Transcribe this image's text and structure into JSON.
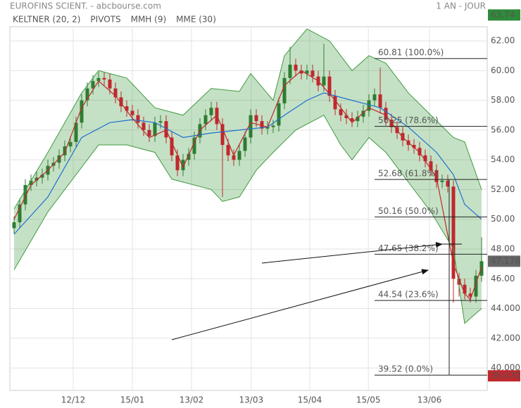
{
  "chart_data": {
    "type": "candlestick",
    "title": "EUROFINS SCIENT. - abcbourse.com",
    "period": "1 AN - JOUR",
    "legend": [
      {
        "name": "KELTNER (20, 2)",
        "color": "#3f9a3f"
      },
      {
        "name": "PIVOTS",
        "color": "#444444"
      },
      {
        "name": "MMH (9)",
        "color": "#c0282d"
      },
      {
        "name": "MME (30)",
        "color": "#1e6fd0"
      }
    ],
    "up_color": "#2e7d32",
    "down_color": "#c0282d",
    "open": [
      49.4,
      49.8,
      51,
      52.3,
      52.6,
      52.8,
      53,
      53.6,
      53.8,
      54.3,
      54.9,
      55.2,
      56.5,
      58,
      58.8,
      59.3,
      59.5,
      59.4,
      58.8,
      58.2,
      57.6,
      57.3,
      57,
      56.5,
      56,
      55.6,
      56.5,
      56.6,
      55.5,
      54.3,
      53.3,
      54,
      54.4,
      55.5,
      56.4,
      57,
      57.5,
      56.4,
      55,
      54.3,
      54,
      54.6,
      55.5,
      57,
      56.6,
      56.1,
      56.2,
      56.3,
      57.8,
      59.5,
      60.4,
      60,
      59.8,
      60,
      59.6,
      59,
      59.6,
      58.3,
      57.4,
      57,
      56.8,
      56.6,
      56.9,
      57.3,
      58,
      58.4,
      57.5,
      56.7,
      56.2,
      55.8,
      55.3,
      55,
      54.8,
      54.3,
      53.9,
      53.3,
      52.5,
      52.6,
      52.2,
      46,
      45.6,
      45,
      44.8,
      46.2
    ],
    "high": [
      50.2,
      51.4,
      52.7,
      53,
      53.2,
      53.4,
      54,
      54.2,
      54.7,
      55.3,
      55.6,
      56.9,
      58.4,
      59.2,
      59.7,
      59.9,
      59.9,
      59.8,
      59.2,
      58.6,
      58,
      57.7,
      57.4,
      56.9,
      56.4,
      56.9,
      57,
      57,
      55.9,
      54.7,
      54.4,
      54.8,
      55.9,
      56.8,
      57.4,
      57.9,
      57.9,
      56.8,
      55.4,
      54.7,
      55,
      55.9,
      57.4,
      57.4,
      57,
      56.6,
      56.7,
      58.2,
      59.9,
      61.6,
      60.8,
      60.4,
      60.4,
      60.4,
      60,
      61.8,
      60,
      58.7,
      57.8,
      57.4,
      57.2,
      57.3,
      57.7,
      58.4,
      58.8,
      60.2,
      57.9,
      57.1,
      56.6,
      56.2,
      55.7,
      55.4,
      55.2,
      54.7,
      54.3,
      53.7,
      53,
      53,
      52.6,
      46.4,
      46,
      45.4,
      46.6,
      48.8
    ],
    "low": [
      49,
      49.4,
      50.6,
      51.9,
      52.2,
      52.4,
      52.6,
      53.2,
      53.4,
      53.9,
      54.5,
      54.8,
      56.1,
      57.6,
      58.4,
      58.9,
      59,
      58.4,
      57.8,
      57.2,
      56.9,
      56.6,
      56.1,
      55.6,
      55.2,
      55.2,
      56.1,
      55.1,
      53.9,
      52.9,
      52.9,
      53.6,
      54,
      55.1,
      56,
      56.6,
      56,
      51.5,
      53.9,
      53.6,
      53.6,
      54.2,
      55.1,
      56.2,
      55.7,
      55.7,
      55.8,
      55.9,
      57.4,
      59.1,
      59.6,
      59.4,
      59.4,
      59.2,
      58.6,
      58.6,
      57.9,
      57,
      56.6,
      56.4,
      56.2,
      56.2,
      56.5,
      56.9,
      57.6,
      57.1,
      56.3,
      55.8,
      55.4,
      54.9,
      54.6,
      54.4,
      53.9,
      53.5,
      52.9,
      52.1,
      52.1,
      51.8,
      44.4,
      44.8,
      44.6,
      44.4,
      44.4,
      45.8
    ],
    "close": [
      49.8,
      51,
      52.3,
      52.6,
      52.8,
      53,
      53.6,
      53.8,
      54.3,
      54.9,
      55.2,
      56.5,
      58,
      58.8,
      59.3,
      59.5,
      59.4,
      58.8,
      58.2,
      57.6,
      57.3,
      57,
      56.5,
      56,
      55.6,
      56.5,
      56.6,
      55.5,
      54.3,
      53.3,
      54,
      54.4,
      55.5,
      56.4,
      57,
      57.5,
      56.4,
      55,
      54.3,
      54,
      54.6,
      55.5,
      57,
      56.6,
      56.1,
      56.2,
      56.3,
      57.8,
      59.5,
      60.4,
      60,
      59.8,
      60,
      59.6,
      59,
      59.6,
      58.3,
      57.4,
      57,
      56.8,
      56.6,
      56.9,
      57.3,
      58,
      58.4,
      57.5,
      56.7,
      56.2,
      55.8,
      55.3,
      55,
      54.8,
      54.3,
      53.9,
      53.3,
      52.5,
      52.6,
      52.2,
      46,
      45.6,
      45,
      44.8,
      46.2,
      47.18
    ],
    "keltner_upper": {
      "x": [
        0,
        6,
        12,
        15,
        20,
        25,
        30,
        35,
        40,
        42,
        46,
        48,
        52,
        56,
        60,
        63,
        66,
        70,
        74,
        78,
        80,
        83
      ],
      "values": [
        50.7,
        54.5,
        58.5,
        60,
        59.5,
        57.5,
        57,
        58.8,
        58.6,
        59.8,
        58,
        61,
        62.8,
        62,
        60,
        61,
        60.5,
        58.5,
        57,
        55.5,
        55.2,
        52
      ]
    },
    "keltner_lower": {
      "x": [
        0,
        6,
        12,
        15,
        20,
        25,
        28,
        30,
        35,
        37,
        40,
        43,
        46,
        50,
        55,
        58,
        60,
        63,
        66,
        70,
        74,
        78,
        80,
        83
      ],
      "values": [
        46.6,
        50.5,
        53.5,
        55,
        55,
        54.5,
        52.7,
        52.5,
        52,
        51.2,
        51.5,
        53.3,
        54.5,
        56,
        57,
        55,
        54,
        55.5,
        54.5,
        52.5,
        50.5,
        48,
        43,
        44
      ]
    },
    "mme": {
      "x": [
        0,
        6,
        12,
        17,
        21,
        25,
        30,
        35,
        40,
        45,
        48,
        52,
        55,
        60,
        65,
        70,
        75,
        78,
        80,
        83
      ],
      "values": [
        49,
        51.5,
        55.5,
        56.5,
        56.7,
        56.5,
        55.5,
        55.8,
        56,
        56.2,
        57,
        58,
        58.5,
        58,
        57.5,
        56.2,
        54.5,
        53,
        51,
        50
      ]
    },
    "mmh": {
      "x": [
        0,
        3,
        6,
        9,
        12,
        15,
        18,
        21,
        24,
        27,
        30,
        33,
        36,
        39,
        42,
        45,
        48,
        51,
        54,
        57,
        60,
        63,
        66,
        69,
        72,
        75,
        78,
        80,
        81,
        83
      ],
      "values": [
        50,
        52.3,
        53.3,
        54.5,
        57.5,
        59.3,
        58.3,
        56.8,
        55.5,
        56,
        53.5,
        56,
        57,
        54.3,
        56.5,
        56.2,
        59,
        60,
        59.3,
        58,
        56.5,
        57.5,
        57,
        55.5,
        54.5,
        52.8,
        47,
        45,
        44.6,
        46.8
      ]
    },
    "fib_levels": [
      {
        "value": 60.81,
        "label": "60.81  (100.0%)"
      },
      {
        "value": 56.25,
        "label": "56.25  (78.6%)"
      },
      {
        "value": 52.68,
        "label": "52.68  (61.8%)"
      },
      {
        "value": 50.16,
        "label": "50.16  (50.0%)"
      },
      {
        "value": 47.65,
        "label": "47.65  (38.2%)"
      },
      {
        "value": 44.54,
        "label": "44.54  (23.6%)"
      },
      {
        "value": 39.52,
        "label": "39.52  (0.0%)"
      }
    ],
    "price_tags": [
      {
        "value": 63.74,
        "label": "63.74",
        "color": "#2e8b3a"
      },
      {
        "value": 47.178,
        "label": "47.178",
        "color": "#666666"
      },
      {
        "value": 39.47,
        "label": "39.470",
        "color": "#c0282d"
      }
    ],
    "xlim": [
      0,
      83
    ],
    "xticks": [
      {
        "value": 10.5,
        "label": "12/12"
      },
      {
        "value": 21,
        "label": "15/01"
      },
      {
        "value": 31.5,
        "label": "13/02"
      },
      {
        "value": 42.1,
        "label": "13/03"
      },
      {
        "value": 52.5,
        "label": "15/04"
      },
      {
        "value": 62.9,
        "label": "15/05"
      },
      {
        "value": 73.75,
        "label": "13/06"
      }
    ],
    "ylim": [
      38.49,
      62.95
    ],
    "yticks": [
      {
        "value": 40,
        "label": "40.000"
      },
      {
        "value": 42,
        "label": "42.000"
      },
      {
        "value": 44,
        "label": "44.000"
      },
      {
        "value": 46,
        "label": "46.00"
      },
      {
        "value": 48,
        "label": "48.00"
      },
      {
        "value": 50,
        "label": "50.00"
      },
      {
        "value": 52,
        "label": "52.00"
      },
      {
        "value": 54,
        "label": "54.00"
      },
      {
        "value": 56,
        "label": "56.00"
      },
      {
        "value": 58,
        "label": "58.00"
      },
      {
        "value": 60,
        "label": "60.00"
      },
      {
        "value": 62,
        "label": "62.00"
      }
    ],
    "grid": true
  }
}
